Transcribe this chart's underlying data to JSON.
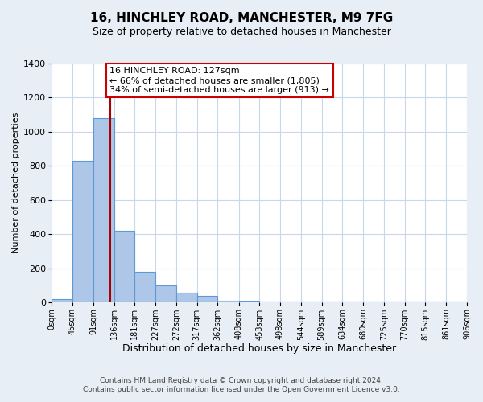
{
  "title1": "16, HINCHLEY ROAD, MANCHESTER, M9 7FG",
  "title2": "Size of property relative to detached houses in Manchester",
  "xlabel": "Distribution of detached houses by size in Manchester",
  "ylabel": "Number of detached properties",
  "bar_values": [
    22,
    830,
    1080,
    420,
    182,
    103,
    58,
    38,
    12,
    5,
    0,
    0,
    0,
    0,
    0,
    0,
    0,
    0,
    0,
    0
  ],
  "bin_edges": [
    0,
    45,
    91,
    136,
    181,
    227,
    272,
    317,
    362,
    408,
    453,
    498,
    544,
    589,
    634,
    680,
    725,
    770,
    815,
    861,
    906
  ],
  "bar_color": "#aec6e8",
  "bar_edgecolor": "#5b9bd5",
  "vline_x": 127,
  "vline_color": "#aa0000",
  "ylim": [
    0,
    1400
  ],
  "yticks": [
    0,
    200,
    400,
    600,
    800,
    1000,
    1200,
    1400
  ],
  "xtick_labels": [
    "0sqm",
    "45sqm",
    "91sqm",
    "136sqm",
    "181sqm",
    "227sqm",
    "272sqm",
    "317sqm",
    "362sqm",
    "408sqm",
    "453sqm",
    "498sqm",
    "544sqm",
    "589sqm",
    "634sqm",
    "680sqm",
    "725sqm",
    "770sqm",
    "815sqm",
    "861sqm",
    "906sqm"
  ],
  "annotation_title": "16 HINCHLEY ROAD: 127sqm",
  "annotation_line1": "← 66% of detached houses are smaller (1,805)",
  "annotation_line2": "34% of semi-detached houses are larger (913) →",
  "annotation_box_color": "#ffffff",
  "annotation_box_edgecolor": "#cc0000",
  "footnote1": "Contains HM Land Registry data © Crown copyright and database right 2024.",
  "footnote2": "Contains public sector information licensed under the Open Government Licence v3.0.",
  "background_color": "#e8eef5",
  "plot_background": "#ffffff",
  "grid_color": "#c8d8e8",
  "title_fontsize": 11,
  "subtitle_fontsize": 9,
  "xlabel_fontsize": 9,
  "ylabel_fontsize": 8
}
